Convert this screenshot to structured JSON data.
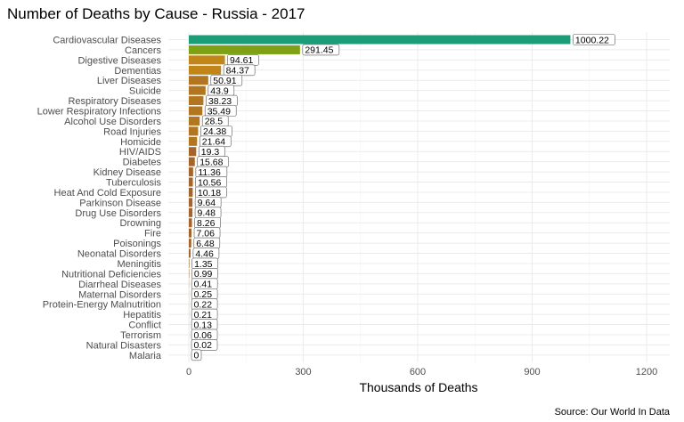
{
  "title": "Number of Deaths by Cause - Russia - 2017",
  "caption": "Source: Our World In Data",
  "colors": {
    "top": "#1b9e77",
    "second": "#7da015",
    "high": "#c28518",
    "mid": "#b27520",
    "low": "#a5652a"
  },
  "chart_data": {
    "type": "bar",
    "orientation": "horizontal",
    "title": "Number of Deaths by Cause - Russia - 2017",
    "xlabel": "Thousands of Deaths",
    "ylabel": "",
    "xlim": [
      0,
      1250
    ],
    "xticks": [
      0,
      300,
      600,
      900,
      1200
    ],
    "grid": true,
    "categories": [
      "Cardiovascular Diseases",
      "Cancers",
      "Digestive Diseases",
      "Dementias",
      "Liver Diseases",
      "Suicide",
      "Respiratory Diseases",
      "Lower Respiratory Infections",
      "Alcohol Use Disorders",
      "Road Injuries",
      "Homicide",
      "HIV/AIDS",
      "Diabetes",
      "Kidney Disease",
      "Tuberculosis",
      "Heat And Cold Exposure",
      "Parkinson Disease",
      "Drug Use Disorders",
      "Drowning",
      "Fire",
      "Poisonings",
      "Neonatal Disorders",
      "Meningitis",
      "Nutritional Deficiencies",
      "Diarrheal Diseases",
      "Maternal Disorders",
      "Protein-Energy Malnutrition",
      "Hepatitis",
      "Conflict",
      "Terrorism",
      "Natural Disasters",
      "Malaria"
    ],
    "values": [
      1000.22,
      291.45,
      94.61,
      84.37,
      50.91,
      43.9,
      38.23,
      35.49,
      28.5,
      24.38,
      21.64,
      19.3,
      15.68,
      11.36,
      10.56,
      10.18,
      9.64,
      9.48,
      8.26,
      7.06,
      6.48,
      4.46,
      1.35,
      0.99,
      0.41,
      0.25,
      0.22,
      0.21,
      0.13,
      0.06,
      0.02,
      0
    ],
    "labels": [
      "1000.22",
      "291.45",
      "94.61",
      "84.37",
      "50.91",
      "43.9",
      "38.23",
      "35.49",
      "28.5",
      "24.38",
      "21.64",
      "19.3",
      "15.68",
      "11.36",
      "10.56",
      "10.18",
      "9.64",
      "9.48",
      "8.26",
      "7.06",
      "6.48",
      "4.46",
      "1.35",
      "0.99",
      "0.41",
      "0.25",
      "0.22",
      "0.21",
      "0.13",
      "0.06",
      "0.02",
      "0"
    ]
  }
}
